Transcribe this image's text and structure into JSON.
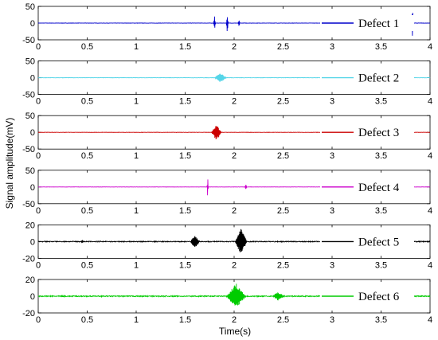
{
  "chart_data": {
    "type": "line",
    "xlabel": "Time(s)",
    "ylabel": "Signal amplitude(mV)",
    "xlim": [
      0,
      4
    ],
    "xticks": [
      "0",
      "0.5",
      "1",
      "1.5",
      "2",
      "2.5",
      "3",
      "3.5",
      "4"
    ],
    "grid": false,
    "legend_position": "right",
    "panels": [
      {
        "name": "Defect 1",
        "color": "#0000cc",
        "ylim": [
          -50,
          50
        ],
        "yticks": [
          "-50",
          "0",
          "50"
        ],
        "bursts": [
          {
            "t": 1.8,
            "amp": 20,
            "width": 0.01
          },
          {
            "t": 1.93,
            "amp": 30,
            "width": 0.01
          },
          {
            "t": 2.05,
            "amp": 10,
            "width": 0.01
          },
          {
            "t": 3.82,
            "amp": 45,
            "width": 0.01
          }
        ],
        "noise": 0.4
      },
      {
        "name": "Defect 2",
        "color": "#55d5e8",
        "ylim": [
          -50,
          50
        ],
        "yticks": [
          "-50",
          "0",
          "50"
        ],
        "bursts": [
          {
            "t": 1.86,
            "amp": 15,
            "width": 0.06
          }
        ],
        "noise": 0.5
      },
      {
        "name": "Defect 3",
        "color": "#cc0000",
        "ylim": [
          -50,
          50
        ],
        "yticks": [
          "-50",
          "0",
          "50"
        ],
        "bursts": [
          {
            "t": 1.82,
            "amp": 25,
            "width": 0.05
          }
        ],
        "noise": 0.4
      },
      {
        "name": "Defect 4",
        "color": "#cc00cc",
        "ylim": [
          -50,
          50
        ],
        "yticks": [
          "-50",
          "0",
          "50"
        ],
        "bursts": [
          {
            "t": 1.73,
            "amp": 50,
            "width": 0.005
          },
          {
            "t": 2.12,
            "amp": 10,
            "width": 0.01
          }
        ],
        "noise": 0.3
      },
      {
        "name": "Defect 5",
        "color": "#000000",
        "ylim": [
          -20,
          20
        ],
        "yticks": [
          "-20",
          "0",
          "20"
        ],
        "bursts": [
          {
            "t": 0.45,
            "amp": 2,
            "width": 0.01
          },
          {
            "t": 1.6,
            "amp": 8,
            "width": 0.05
          },
          {
            "t": 2.07,
            "amp": 17,
            "width": 0.06
          }
        ],
        "noise": 0.5
      },
      {
        "name": "Defect 6",
        "color": "#00cc00",
        "ylim": [
          -20,
          20
        ],
        "yticks": [
          "-20",
          "0",
          "20"
        ],
        "bursts": [
          {
            "t": 2.02,
            "amp": 15,
            "width": 0.1
          },
          {
            "t": 2.45,
            "amp": 5,
            "width": 0.06
          }
        ],
        "noise": 0.6
      }
    ]
  }
}
